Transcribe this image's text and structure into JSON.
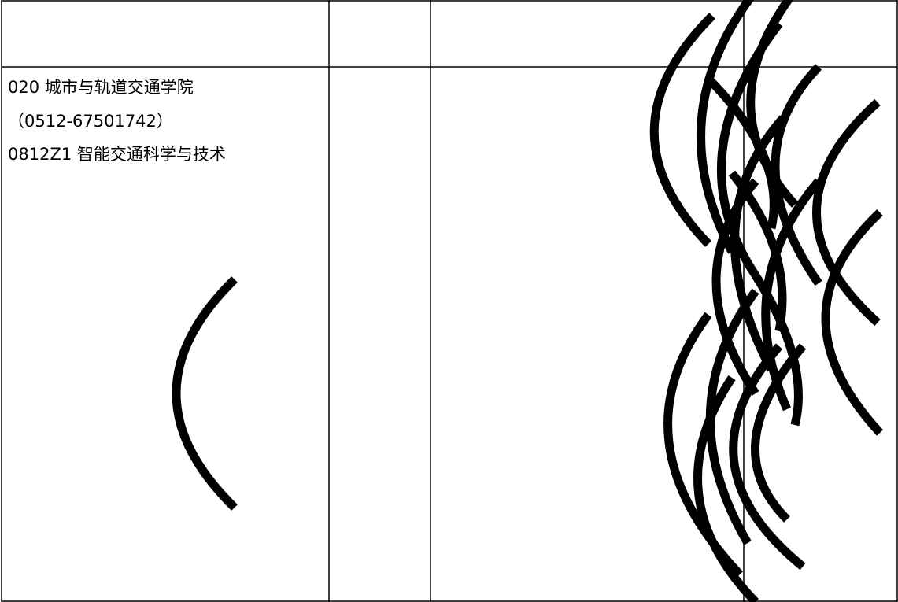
{
  "table": {
    "cell": {
      "lines": [
        "020 城市与轨道交通学院",
        "（0512-67501742）",
        "0812Z1 智能交通科学与技术"
      ]
    }
  }
}
